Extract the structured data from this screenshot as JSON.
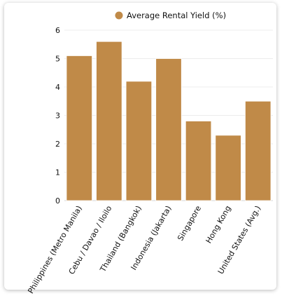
{
  "chart_data": {
    "type": "bar",
    "title": "",
    "xlabel": "",
    "ylabel": "",
    "ylim": [
      0,
      6
    ],
    "yticks": [
      0,
      1,
      2,
      3,
      4,
      5,
      6
    ],
    "grid": "horizontal",
    "legend_position": "top",
    "categories": [
      "Philippines (Metro Manila)",
      "Cebu / Davao / Iloilo",
      "Thailand (Bangkok)",
      "Indonesia (Jakarta)",
      "Singapore",
      "Hong Kong",
      "United States (Avg.)"
    ],
    "series": [
      {
        "name": "Average Rental Yield (%)",
        "color": "#C08A48",
        "values": [
          5.1,
          5.6,
          4.2,
          5.0,
          2.8,
          2.3,
          3.5
        ]
      }
    ]
  }
}
